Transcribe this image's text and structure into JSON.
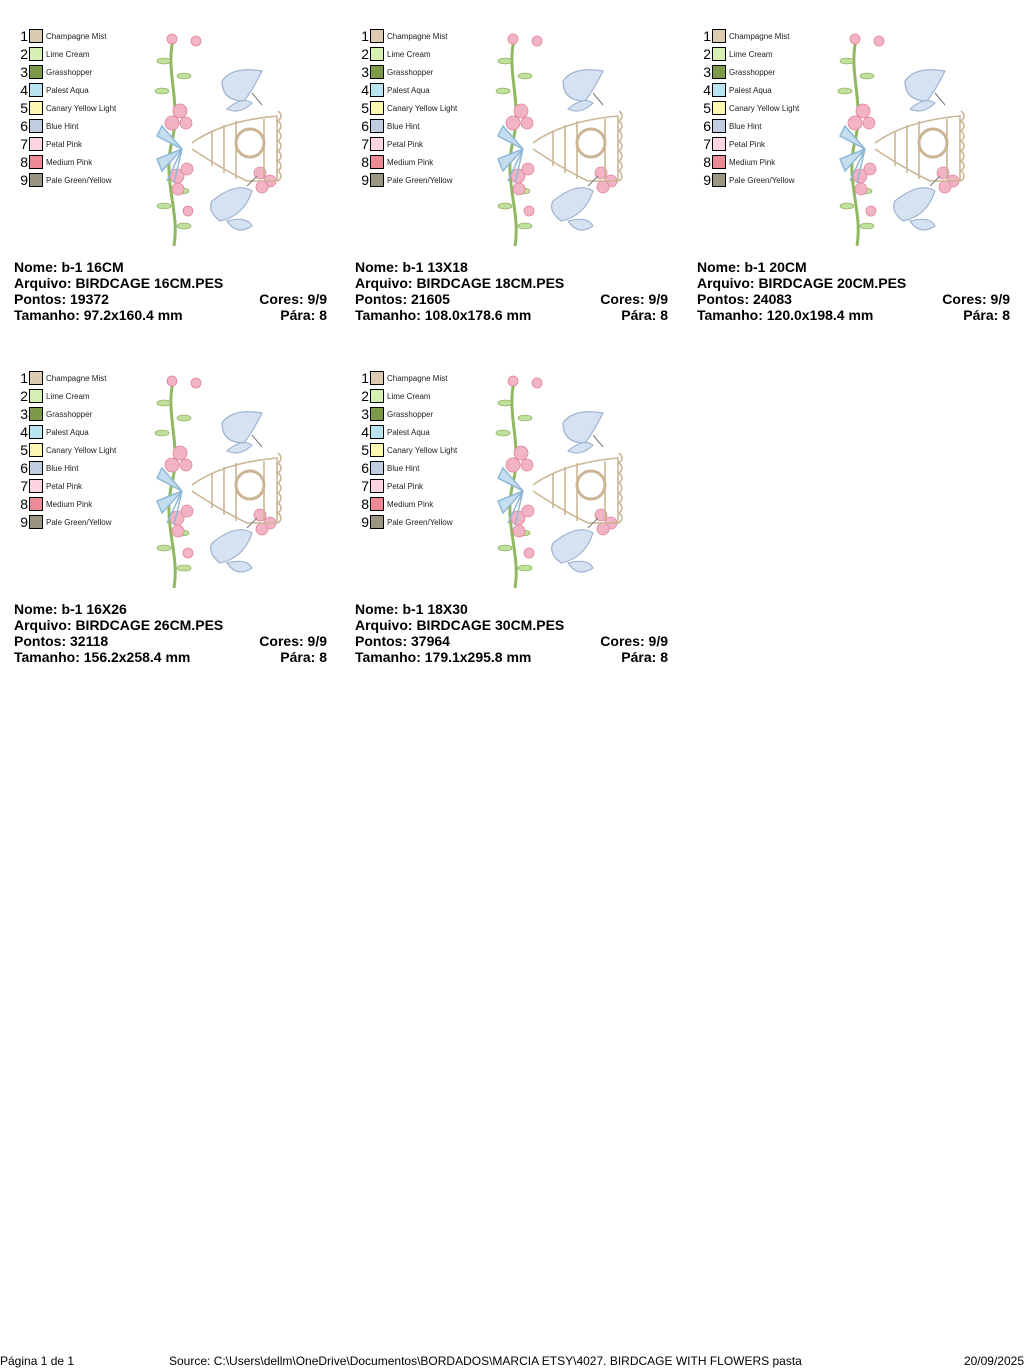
{
  "thread_colors": [
    {
      "num": "1",
      "name": "Champagne Mist",
      "color": "#dccbb0"
    },
    {
      "num": "2",
      "name": "Lime Cream",
      "color": "#d6f0b4"
    },
    {
      "num": "3",
      "name": "Grasshopper",
      "color": "#7d9a48"
    },
    {
      "num": "4",
      "name": "Palest Aqua",
      "color": "#b8e4f0"
    },
    {
      "num": "5",
      "name": "Canary Yellow Light",
      "color": "#fbf6b0"
    },
    {
      "num": "6",
      "name": "Blue Hint",
      "color": "#c0cce0"
    },
    {
      "num": "7",
      "name": "Petal Pink",
      "color": "#fcd4e4"
    },
    {
      "num": "8",
      "name": "Medium Pink",
      "color": "#ec8a96"
    },
    {
      "num": "9",
      "name": "Pale Green/Yellow",
      "color": "#9a9580"
    }
  ],
  "designs": [
    {
      "nome": "Nome: b-1 16CM",
      "arquivo": "Arquivo: BIRDCAGE 16CM.PES",
      "pontos": "Pontos: 19372",
      "cores": "Cores: 9/9",
      "tamanho": "Tamanho: 97.2x160.4 mm",
      "para": "Pára: 8"
    },
    {
      "nome": "Nome: b-1 13X18",
      "arquivo": "Arquivo: BIRDCAGE 18CM.PES",
      "pontos": "Pontos: 21605",
      "cores": "Cores: 9/9",
      "tamanho": "Tamanho: 108.0x178.6 mm",
      "para": "Pára: 8"
    },
    {
      "nome": "Nome: b-1 20CM",
      "arquivo": "Arquivo: BIRDCAGE 20CM.PES",
      "pontos": "Pontos: 24083",
      "cores": "Cores: 9/9",
      "tamanho": "Tamanho: 120.0x198.4 mm",
      "para": "Pára: 8"
    },
    {
      "nome": "Nome: b-1 16X26",
      "arquivo": "Arquivo: BIRDCAGE 26CM.PES",
      "pontos": "Pontos: 32118",
      "cores": "Cores: 9/9",
      "tamanho": "Tamanho: 156.2x258.4 mm",
      "para": "Pára: 8"
    },
    {
      "nome": "Nome: b-1 18X30",
      "arquivo": "Arquivo: BIRDCAGE 30CM.PES",
      "pontos": "Pontos: 37964",
      "cores": "Cores: 9/9",
      "tamanho": "Tamanho: 179.1x295.8 mm",
      "para": "Pára: 8"
    }
  ],
  "footer": {
    "page": "Página 1 de 1",
    "source": "Source: C:\\Users\\dellm\\OneDrive\\Documentos\\BORDADOS\\MARCIA ETSY\\4027. BIRDCAGE WITH FLOWERS pasta",
    "date": "20/09/2025"
  }
}
